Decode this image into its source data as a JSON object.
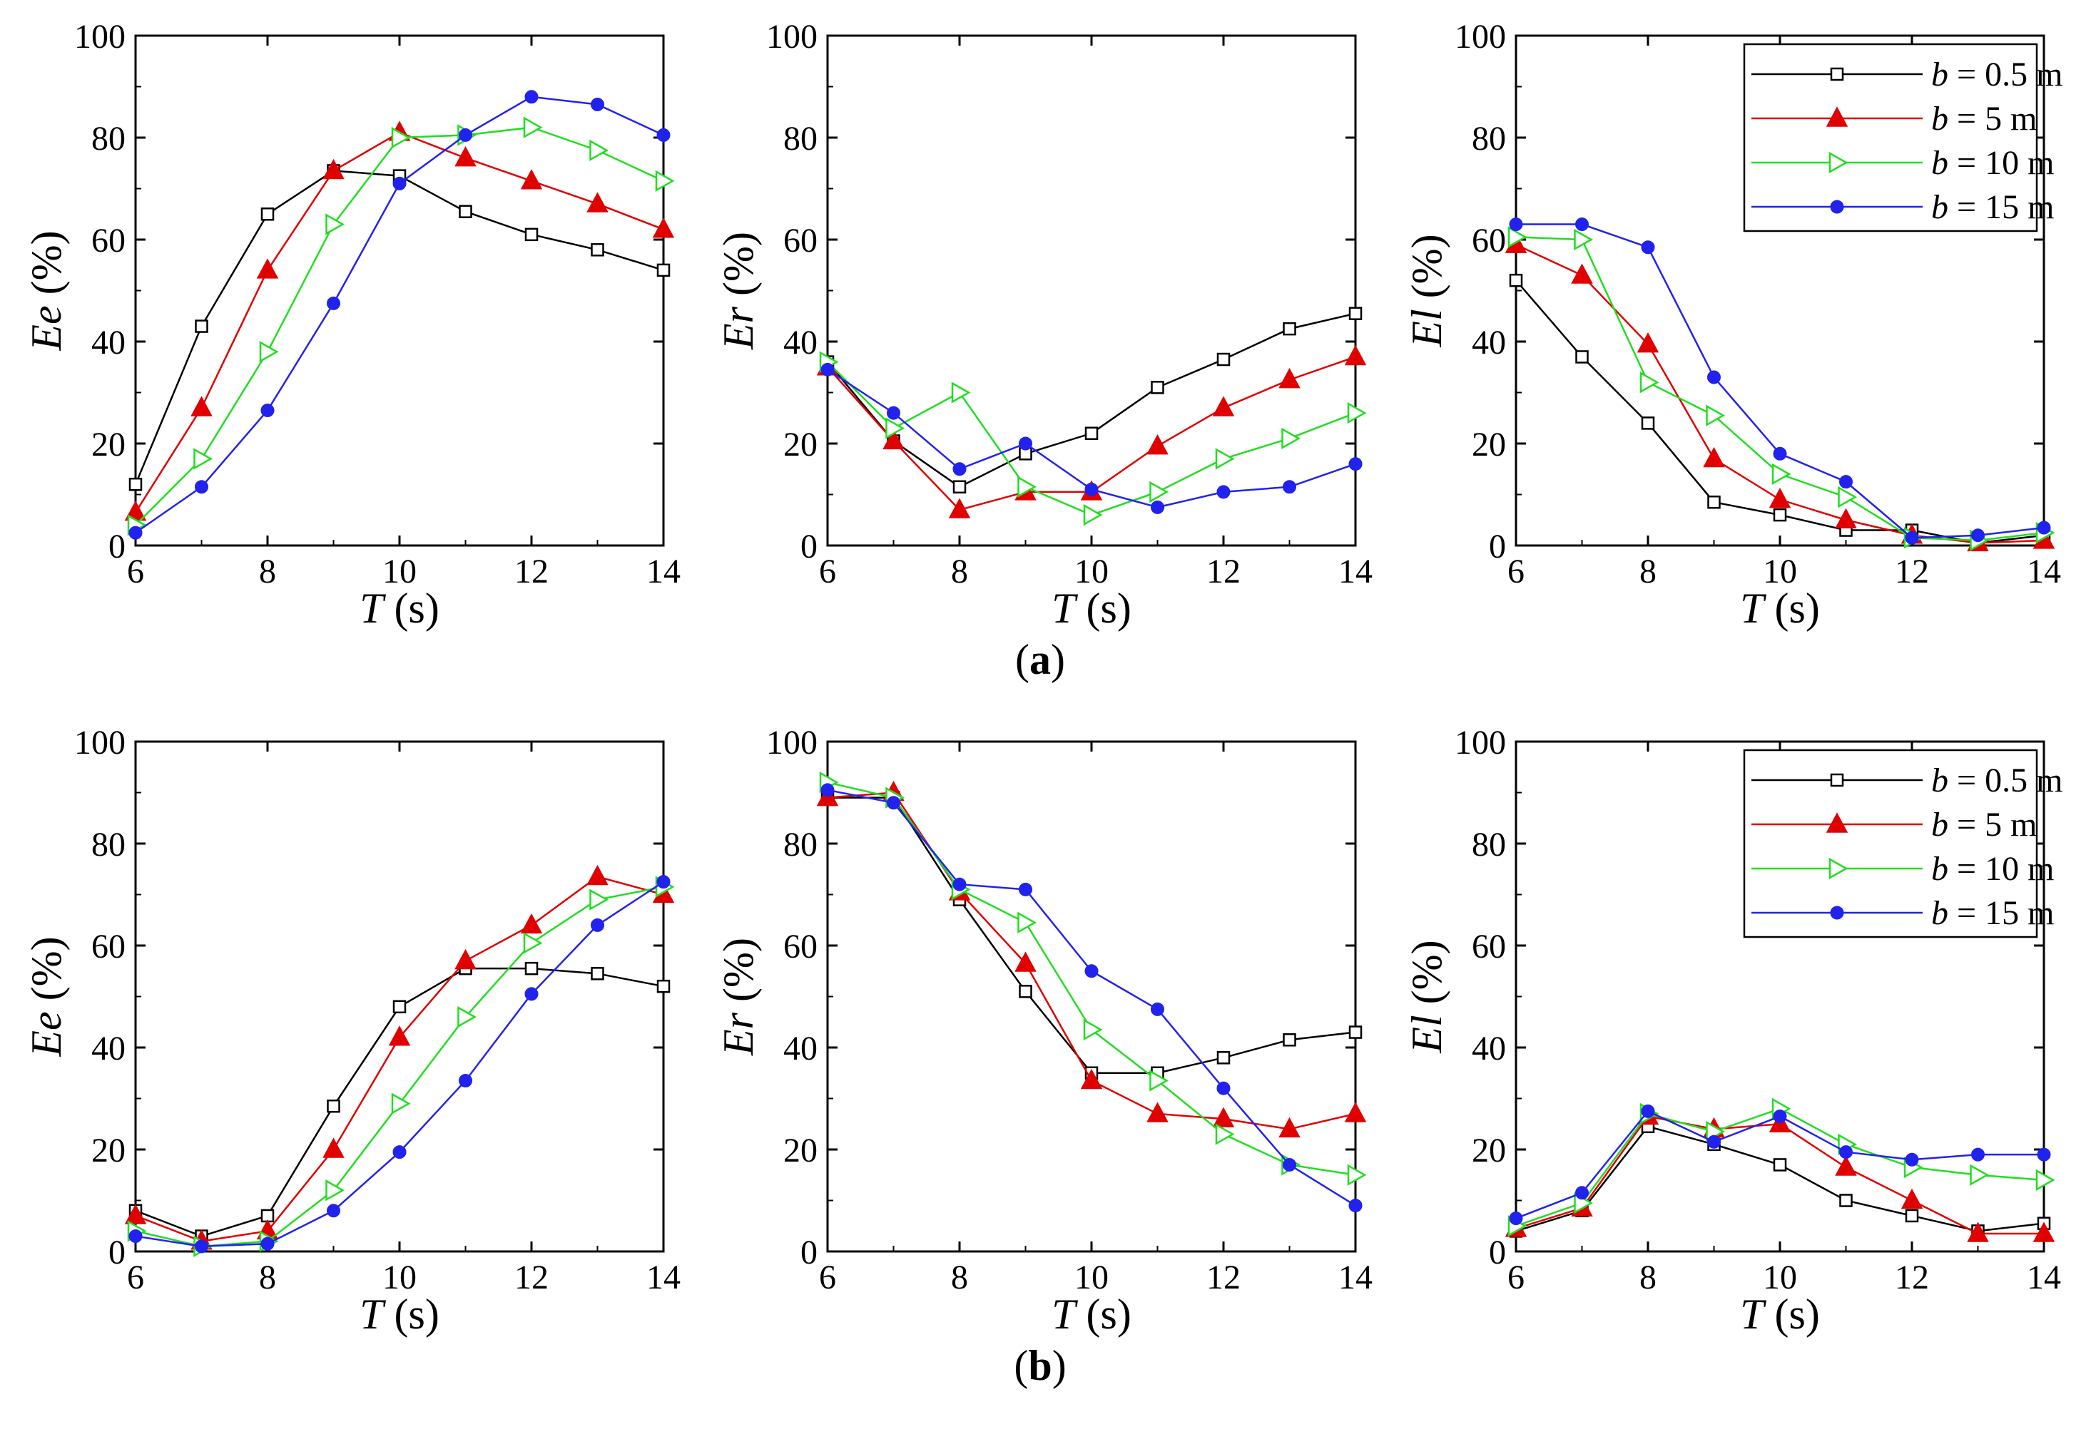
{
  "chart_data": [
    {
      "type": "line",
      "id": "a-Ee",
      "x": [
        6,
        7,
        8,
        9,
        10,
        11,
        12,
        13,
        14
      ],
      "series": [
        {
          "name": "b = 0.5 m",
          "values": [
            12,
            43,
            65,
            73.5,
            72.5,
            65.5,
            61,
            58,
            54
          ]
        },
        {
          "name": "b = 5 m",
          "values": [
            6.5,
            27,
            54,
            73.5,
            81,
            76,
            71.5,
            67,
            62
          ]
        },
        {
          "name": "b = 10 m",
          "values": [
            4,
            17,
            38,
            63,
            80,
            80.5,
            82,
            77.5,
            71.5
          ]
        },
        {
          "name": "b = 15 m",
          "values": [
            2.5,
            11.5,
            26.5,
            47.5,
            71,
            80.5,
            88,
            86.5,
            80.5
          ]
        }
      ],
      "xlabel": "T (s)",
      "ylabel": "Ee (%)",
      "xlim": [
        6,
        14
      ],
      "ylim": [
        0,
        100
      ]
    },
    {
      "type": "line",
      "id": "a-Er",
      "x": [
        6,
        7,
        8,
        9,
        10,
        11,
        12,
        13,
        14
      ],
      "series": [
        {
          "name": "b = 0.5 m",
          "values": [
            36,
            20.5,
            11.5,
            18,
            22,
            31,
            36.5,
            42.5,
            45.5
          ]
        },
        {
          "name": "b = 5 m",
          "values": [
            35,
            20.5,
            7,
            10.5,
            10.5,
            19.5,
            27,
            32.5,
            37
          ]
        },
        {
          "name": "b = 10 m",
          "values": [
            36,
            23,
            30,
            11.5,
            6,
            10.5,
            17,
            21,
            26
          ]
        },
        {
          "name": "b = 15 m",
          "values": [
            34.5,
            26,
            15,
            20,
            11,
            7.5,
            10.5,
            11.5,
            16
          ]
        }
      ],
      "xlabel": "T (s)",
      "ylabel": "Er (%)",
      "xlim": [
        6,
        14
      ],
      "ylim": [
        0,
        100
      ]
    },
    {
      "type": "line",
      "id": "a-El",
      "x": [
        6,
        7,
        8,
        9,
        10,
        11,
        12,
        13,
        14
      ],
      "series": [
        {
          "name": "b = 0.5 m",
          "values": [
            52,
            37,
            24,
            8.5,
            6,
            3,
            3,
            0.5,
            2
          ]
        },
        {
          "name": "b = 5 m",
          "values": [
            59,
            53,
            39.5,
            17,
            9,
            5,
            2,
            0.5,
            1
          ]
        },
        {
          "name": "b = 10 m",
          "values": [
            60.5,
            60,
            32,
            25.5,
            14,
            9.5,
            1.5,
            1,
            2.5
          ]
        },
        {
          "name": "b = 15 m",
          "values": [
            63,
            63,
            58.5,
            33,
            18,
            12.5,
            1.5,
            2,
            3.5
          ]
        }
      ],
      "xlabel": "T (s)",
      "ylabel": "El (%)",
      "xlim": [
        6,
        14
      ],
      "ylim": [
        0,
        100
      ]
    },
    {
      "type": "line",
      "id": "b-Ee",
      "x": [
        6,
        7,
        8,
        9,
        10,
        11,
        12,
        13,
        14
      ],
      "series": [
        {
          "name": "b = 0.5 m",
          "values": [
            8,
            3,
            7,
            28.5,
            48,
            55.5,
            55.5,
            54.5,
            52
          ]
        },
        {
          "name": "b = 5 m",
          "values": [
            7,
            2,
            4,
            20,
            42,
            57,
            64,
            73.5,
            70
          ]
        },
        {
          "name": "b = 10 m",
          "values": [
            4,
            1,
            2,
            12,
            29,
            46,
            60.5,
            69,
            71.5
          ]
        },
        {
          "name": "b = 15 m",
          "values": [
            3,
            1,
            1.5,
            8,
            19.5,
            33.5,
            50.5,
            64,
            72.5
          ]
        }
      ],
      "xlabel": "T (s)",
      "ylabel": "Ee (%)",
      "xlim": [
        6,
        14
      ],
      "ylim": [
        0,
        100
      ]
    },
    {
      "type": "line",
      "id": "b-Er",
      "x": [
        6,
        7,
        8,
        9,
        10,
        11,
        12,
        13,
        14
      ],
      "series": [
        {
          "name": "b = 0.5 m",
          "values": [
            89,
            89,
            69,
            51,
            35,
            35,
            38,
            41.5,
            43
          ]
        },
        {
          "name": "b = 5 m",
          "values": [
            89,
            90,
            70.5,
            56.5,
            33.5,
            27,
            26,
            24,
            27
          ]
        },
        {
          "name": "b = 10 m",
          "values": [
            92,
            89,
            71,
            64.5,
            43.5,
            33.5,
            23,
            17,
            15
          ]
        },
        {
          "name": "b = 15 m",
          "values": [
            90.5,
            88,
            72,
            71,
            55,
            47.5,
            32,
            17,
            9
          ]
        }
      ],
      "xlabel": "T (s)",
      "ylabel": "Er (%)",
      "xlim": [
        6,
        14
      ],
      "ylim": [
        0,
        100
      ]
    },
    {
      "type": "line",
      "id": "b-El",
      "x": [
        6,
        7,
        8,
        9,
        10,
        11,
        12,
        13,
        14
      ],
      "series": [
        {
          "name": "b = 0.5 m",
          "values": [
            4,
            8,
            24.5,
            21,
            17,
            10,
            7,
            4,
            5.5
          ]
        },
        {
          "name": "b = 5 m",
          "values": [
            4.5,
            8.5,
            26.5,
            24,
            25,
            16.5,
            10,
            3.5,
            3.5
          ]
        },
        {
          "name": "b = 10 m",
          "values": [
            5,
            9.5,
            27,
            23.5,
            28,
            21,
            16.5,
            15,
            14
          ]
        },
        {
          "name": "b = 15 m",
          "values": [
            6.5,
            11.5,
            27.5,
            21.5,
            26.5,
            19.5,
            18,
            19,
            19
          ]
        }
      ],
      "xlabel": "T (s)",
      "ylabel": "El (%)",
      "xlim": [
        6,
        14
      ],
      "ylim": [
        0,
        100
      ]
    }
  ],
  "panel_labels": [
    "(a)",
    "(b)"
  ],
  "axis_text": {
    "x_var": "T",
    "x_unit": "(s)",
    "y_vars": {
      "Ee": "Ee",
      "Er": "Er",
      "El": "El"
    },
    "y_unit": "(%)"
  },
  "x_ticks": [
    "6",
    "8",
    "10",
    "12",
    "14"
  ],
  "y_ticks": [
    "0",
    "20",
    "40",
    "60",
    "80",
    "100"
  ],
  "legend": {
    "prefix": "b",
    "entries": [
      "= 0.5 m",
      "= 5 m",
      "= 10 m",
      "= 15 m"
    ],
    "placement": "top-right"
  },
  "series_style": [
    {
      "color": "#000000",
      "marker": "open-square"
    },
    {
      "color": "#e00000",
      "marker": "filled-triangle"
    },
    {
      "color": "#22dd22",
      "marker": "open-right-triangle"
    },
    {
      "color": "#2222ee",
      "marker": "filled-circle"
    }
  ]
}
